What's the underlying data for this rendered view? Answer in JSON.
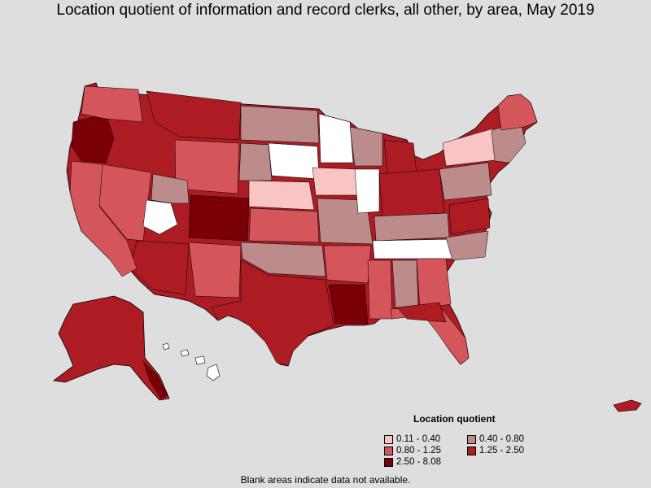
{
  "title": "Location quotient of information and record clerks, all other, by area, May 2019",
  "legend": {
    "title": "Location quotient",
    "items": [
      {
        "label": "0.11 - 0.40",
        "color": "#f9c4c4"
      },
      {
        "label": "0.40 - 0.80",
        "color": "#bc8c8c"
      },
      {
        "label": "0.80 - 1.25",
        "color": "#d4555a"
      },
      {
        "label": "1.25 - 2.50",
        "color": "#ad1c22"
      },
      {
        "label": "2.50 - 8.08",
        "color": "#7a0008"
      }
    ]
  },
  "note": "Blank areas indicate data not available.",
  "colors": {
    "background": "#dedede",
    "no_data": "#ffffff",
    "border": "#000000"
  }
}
